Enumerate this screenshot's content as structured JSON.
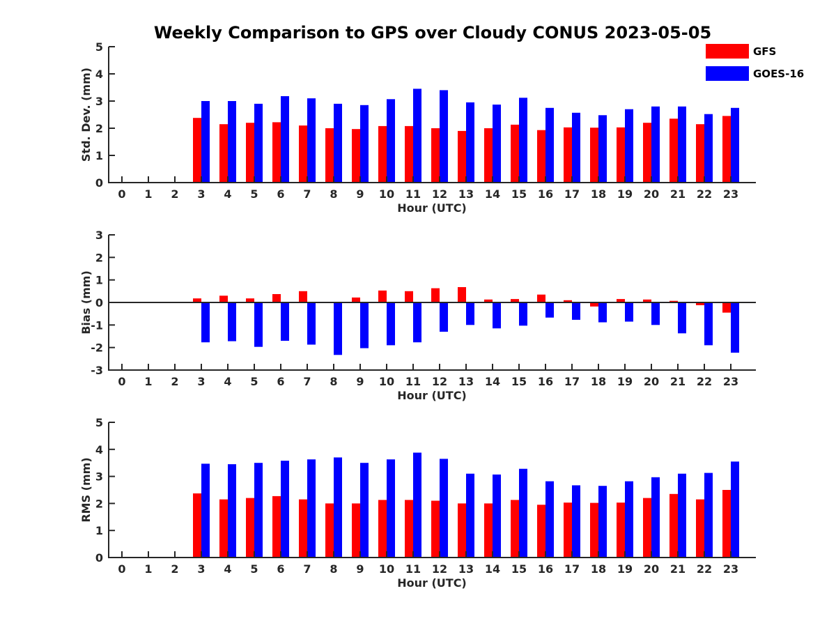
{
  "title": "Weekly Comparison to GPS over Cloudy CONUS 2023-05-05",
  "legend": {
    "placement": "top-right",
    "entries": [
      {
        "label": "GFS",
        "color": "#ff0000"
      },
      {
        "label": "GOES-16",
        "color": "#0000ff"
      }
    ]
  },
  "chart_data": [
    {
      "type": "bar",
      "xlabel": "Hour (UTC)",
      "ylabel": "Std. Dev. (mm)",
      "ylim": [
        0,
        5
      ],
      "yticks": [
        "0",
        "1",
        "2",
        "3",
        "4",
        "5"
      ],
      "xlim": [
        0,
        23
      ],
      "categories": [
        "0",
        "1",
        "2",
        "3",
        "4",
        "5",
        "6",
        "7",
        "8",
        "9",
        "10",
        "11",
        "12",
        "13",
        "14",
        "15",
        "16",
        "17",
        "18",
        "19",
        "20",
        "21",
        "22",
        "23"
      ],
      "series": [
        {
          "name": "GFS",
          "color": "#ff0000",
          "values": [
            null,
            null,
            null,
            2.38,
            2.15,
            2.2,
            2.22,
            2.1,
            2.0,
            1.97,
            2.08,
            2.08,
            2.0,
            1.9,
            2.0,
            2.13,
            1.93,
            2.03,
            2.02,
            2.03,
            2.2,
            2.35,
            2.15,
            2.45
          ]
        },
        {
          "name": "GOES-16",
          "color": "#0000ff",
          "values": [
            null,
            null,
            null,
            3.0,
            3.0,
            2.9,
            3.18,
            3.1,
            2.9,
            2.85,
            3.07,
            3.45,
            3.4,
            2.95,
            2.87,
            3.12,
            2.75,
            2.57,
            2.48,
            2.7,
            2.8,
            2.8,
            2.52,
            2.75
          ]
        }
      ]
    },
    {
      "type": "bar",
      "xlabel": "Hour (UTC)",
      "ylabel": "Bias (mm)",
      "ylim": [
        -3,
        3
      ],
      "yticks": [
        "-3",
        "-2",
        "-1",
        "0",
        "1",
        "2",
        "3"
      ],
      "xlim": [
        0,
        23
      ],
      "categories": [
        "0",
        "1",
        "2",
        "3",
        "4",
        "5",
        "6",
        "7",
        "8",
        "9",
        "10",
        "11",
        "12",
        "13",
        "14",
        "15",
        "16",
        "17",
        "18",
        "19",
        "20",
        "21",
        "22",
        "23"
      ],
      "series": [
        {
          "name": "GFS",
          "color": "#ff0000",
          "values": [
            null,
            null,
            null,
            0.18,
            0.3,
            0.18,
            0.37,
            0.5,
            0.0,
            0.22,
            0.53,
            0.5,
            0.63,
            0.68,
            0.13,
            0.15,
            0.35,
            0.1,
            -0.18,
            0.15,
            0.13,
            0.07,
            -0.12,
            -0.45
          ]
        },
        {
          "name": "GOES-16",
          "color": "#0000ff",
          "values": [
            null,
            null,
            null,
            -1.77,
            -1.72,
            -1.97,
            -1.7,
            -1.87,
            -2.33,
            -2.03,
            -1.9,
            -1.77,
            -1.3,
            -1.0,
            -1.15,
            -1.03,
            -0.67,
            -0.77,
            -0.88,
            -0.85,
            -1.0,
            -1.37,
            -1.9,
            -2.23
          ]
        }
      ]
    },
    {
      "type": "bar",
      "xlabel": "Hour (UTC)",
      "ylabel": "RMS (mm)",
      "ylim": [
        0,
        5
      ],
      "yticks": [
        "0",
        "1",
        "2",
        "3",
        "4",
        "5"
      ],
      "xlim": [
        0,
        23
      ],
      "categories": [
        "0",
        "1",
        "2",
        "3",
        "4",
        "5",
        "6",
        "7",
        "8",
        "9",
        "10",
        "11",
        "12",
        "13",
        "14",
        "15",
        "16",
        "17",
        "18",
        "19",
        "20",
        "21",
        "22",
        "23"
      ],
      "series": [
        {
          "name": "GFS",
          "color": "#ff0000",
          "values": [
            null,
            null,
            null,
            2.37,
            2.15,
            2.2,
            2.27,
            2.15,
            2.0,
            2.0,
            2.13,
            2.13,
            2.1,
            2.0,
            2.0,
            2.13,
            1.95,
            2.03,
            2.02,
            2.03,
            2.2,
            2.35,
            2.15,
            2.5
          ]
        },
        {
          "name": "GOES-16",
          "color": "#0000ff",
          "values": [
            null,
            null,
            null,
            3.47,
            3.45,
            3.5,
            3.58,
            3.63,
            3.7,
            3.5,
            3.63,
            3.88,
            3.65,
            3.1,
            3.07,
            3.28,
            2.82,
            2.67,
            2.65,
            2.82,
            2.97,
            3.1,
            3.13,
            3.55
          ]
        }
      ]
    }
  ]
}
